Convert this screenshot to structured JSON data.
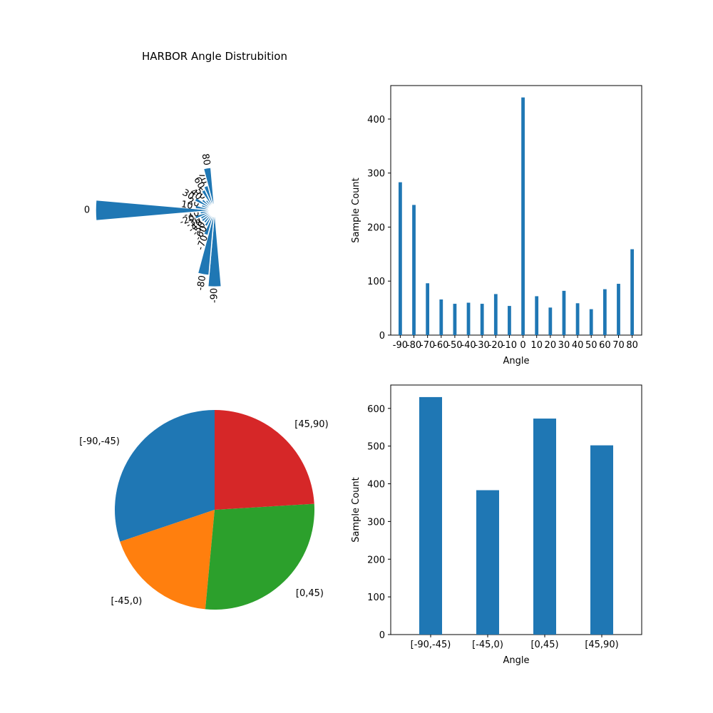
{
  "figure_title": "HARBOR Angle Distrubition",
  "colors": {
    "bar": "#1f77b4",
    "pie": [
      "#1f77b4",
      "#ff7f0e",
      "#2ca02c",
      "#d62728"
    ]
  },
  "chart_data": [
    {
      "type": "polar-bar",
      "title": "HARBOR Angle Distrubition",
      "categories": [
        "-90",
        "-80",
        "-70",
        "-60",
        "-50",
        "-40",
        "-30",
        "-20",
        "-10",
        "0",
        "10",
        "20",
        "30",
        "40",
        "50",
        "60",
        "70",
        "80"
      ],
      "values": [
        283,
        241,
        96,
        66,
        58,
        60,
        58,
        76,
        54,
        440,
        72,
        51,
        82,
        59,
        48,
        85,
        95,
        159
      ]
    },
    {
      "type": "bar",
      "categories": [
        "-90",
        "-80",
        "-70",
        "-60",
        "-50",
        "-40",
        "-30",
        "-20",
        "-10",
        "0",
        "10",
        "20",
        "30",
        "40",
        "50",
        "60",
        "70",
        "80"
      ],
      "values": [
        283,
        241,
        96,
        66,
        58,
        60,
        58,
        76,
        54,
        440,
        72,
        51,
        82,
        59,
        48,
        85,
        95,
        159
      ],
      "xlabel": "Angle",
      "ylabel": "Sample Count",
      "ylim": [
        0,
        462
      ],
      "yticks": [
        0,
        100,
        200,
        300,
        400
      ]
    },
    {
      "type": "pie",
      "categories": [
        "[-90,-45)",
        "[-45,0)",
        "[0,45)",
        "[45,90)"
      ],
      "values": [
        630,
        383,
        573,
        502
      ]
    },
    {
      "type": "bar",
      "categories": [
        "[-90,-45)",
        "[-45,0)",
        "[0,45)",
        "[45,90)"
      ],
      "values": [
        630,
        383,
        573,
        502
      ],
      "xlabel": "Angle",
      "ylabel": "Sample Count",
      "ylim": [
        0,
        662
      ],
      "yticks": [
        0,
        100,
        200,
        300,
        400,
        500,
        600
      ]
    }
  ]
}
